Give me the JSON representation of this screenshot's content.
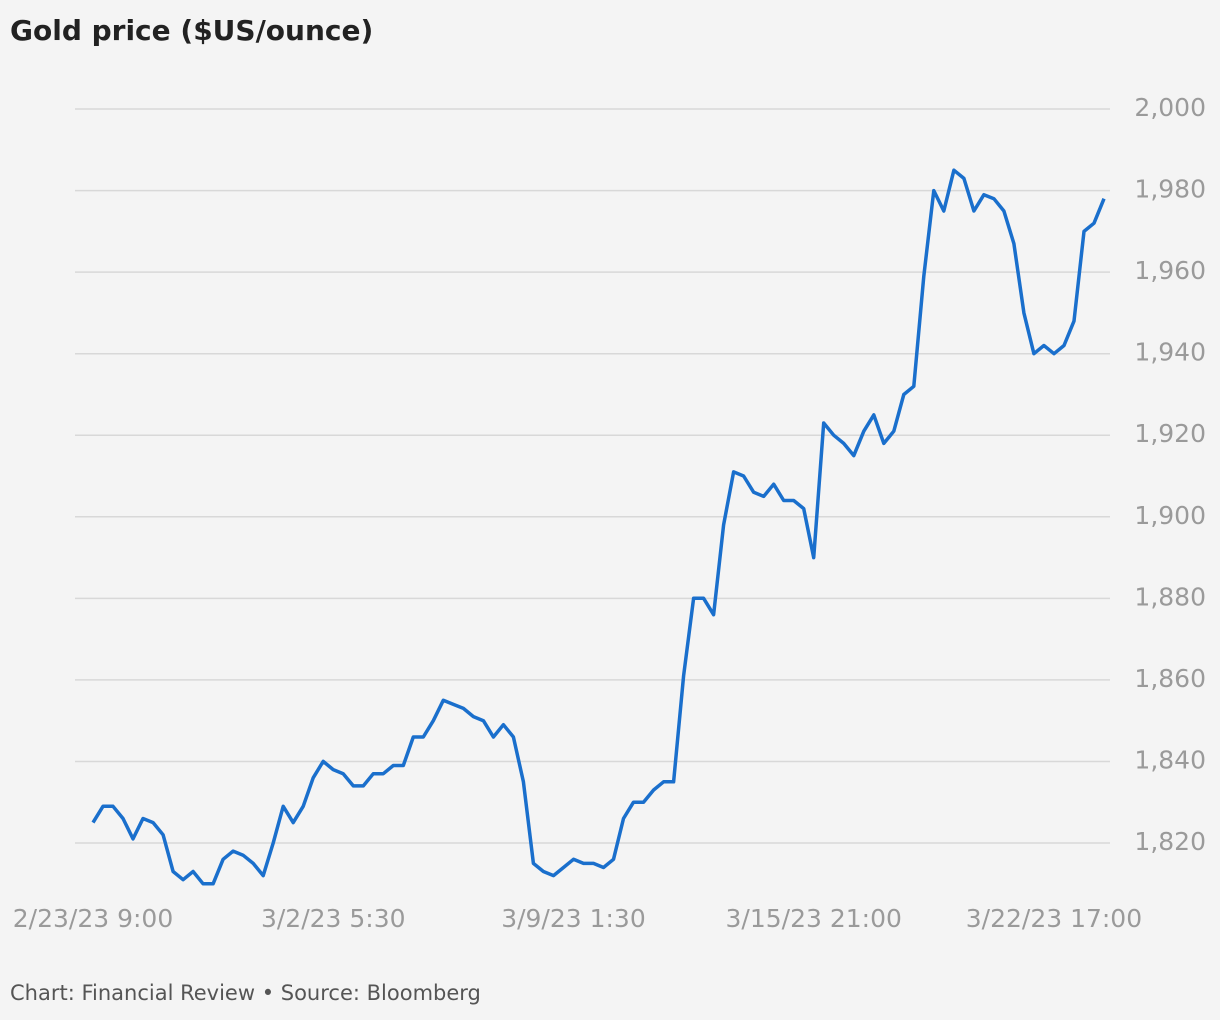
{
  "chart_data": {
    "type": "line",
    "title": "Gold price ($US/ounce)",
    "footer": "Chart: Financial Review • Source: Bloomberg",
    "categories": [
      "2/23/23 9:00",
      null,
      null,
      null,
      null,
      null,
      null,
      null,
      null,
      null,
      null,
      null,
      null,
      null,
      null,
      null,
      null,
      null,
      null,
      null,
      null,
      null,
      null,
      null,
      "3/2/23 5:30",
      null,
      null,
      null,
      null,
      null,
      null,
      null,
      null,
      null,
      null,
      null,
      null,
      null,
      null,
      null,
      null,
      null,
      null,
      null,
      null,
      null,
      null,
      null,
      "3/9/23 1:30",
      null,
      null,
      null,
      null,
      null,
      null,
      null,
      null,
      null,
      null,
      null,
      null,
      null,
      null,
      null,
      null,
      null,
      null,
      null,
      null,
      null,
      null,
      null,
      "3/15/23 21:00",
      null,
      null,
      null,
      null,
      null,
      null,
      null,
      null,
      null,
      null,
      null,
      null,
      null,
      null,
      null,
      null,
      null,
      null,
      null,
      null,
      null,
      null,
      null,
      "3/22/23 17:00",
      null,
      null,
      null,
      null,
      null
    ],
    "series": [
      {
        "name": "Gold",
        "color": "#1a6fcc",
        "values": [
          1825,
          1829,
          1829,
          1826,
          1821,
          1826,
          1825,
          1822,
          1813,
          1811,
          1813,
          1810,
          1810,
          1816,
          1818,
          1817,
          1815,
          1812,
          1820,
          1829,
          1825,
          1829,
          1836,
          1840,
          1838,
          1837,
          1834,
          1834,
          1837,
          1837,
          1839,
          1839,
          1846,
          1846,
          1850,
          1855,
          1854,
          1853,
          1851,
          1850,
          1846,
          1849,
          1846,
          1835,
          1815,
          1813,
          1812,
          1814,
          1816,
          1815,
          1815,
          1814,
          1816,
          1826,
          1830,
          1830,
          1833,
          1835,
          1835,
          1861,
          1880,
          1880,
          1876,
          1898,
          1911,
          1910,
          1906,
          1905,
          1908,
          1904,
          1904,
          1902,
          1890,
          1923,
          1920,
          1918,
          1915,
          1921,
          1925,
          1918,
          1921,
          1930,
          1932,
          1959,
          1980,
          1975,
          1985,
          1983,
          1975,
          1979,
          1978,
          1975,
          1967,
          1950,
          1940,
          1942,
          1940,
          1942,
          1948,
          1970,
          1972,
          1978
        ]
      }
    ],
    "ylim": [
      1807,
      2007
    ],
    "yticks": [
      {
        "value": 1820,
        "label": "1,820"
      },
      {
        "value": 1840,
        "label": "1,840"
      },
      {
        "value": 1860,
        "label": "1,860"
      },
      {
        "value": 1880,
        "label": "1,880"
      },
      {
        "value": 1900,
        "label": "1,900"
      },
      {
        "value": 1920,
        "label": "1,920"
      },
      {
        "value": 1940,
        "label": "1,940"
      },
      {
        "value": 1960,
        "label": "1,960"
      },
      {
        "value": 1980,
        "label": "1,980"
      },
      {
        "value": 2000,
        "label": "2,000"
      }
    ],
    "grid": true
  }
}
